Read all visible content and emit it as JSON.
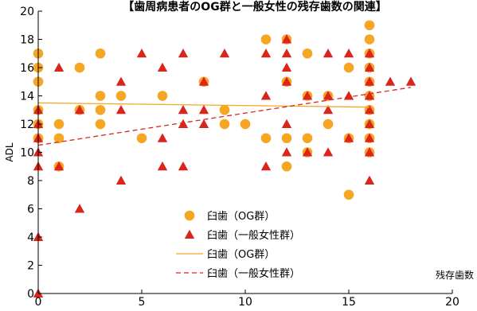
{
  "chart_data": {
    "type": "scatter",
    "title": "【歯周病患者のOG群と一般女性の残存歯数の関連】",
    "xlabel": "残存歯数",
    "ylabel": "ADL",
    "xlim": [
      0,
      20
    ],
    "ylim": [
      0,
      20
    ],
    "x_ticks": [
      "0",
      "5",
      "10",
      "15",
      "20"
    ],
    "y_ticks": [
      "0",
      "2",
      "4",
      "6",
      "8",
      "10",
      "12",
      "14",
      "16",
      "18",
      "20"
    ],
    "grid": false,
    "legend": "center",
    "colors": {
      "og": "#f5a623",
      "general": "#d9251c"
    },
    "series": [
      {
        "name": "臼歯（OG群）",
        "marker": "circle",
        "points": [
          [
            0,
            17
          ],
          [
            0,
            16
          ],
          [
            0,
            15
          ],
          [
            0,
            13
          ],
          [
            0,
            12
          ],
          [
            0,
            11
          ],
          [
            1,
            12
          ],
          [
            1,
            11
          ],
          [
            1,
            9
          ],
          [
            2,
            16
          ],
          [
            2,
            13
          ],
          [
            3,
            17
          ],
          [
            3,
            14
          ],
          [
            3,
            13
          ],
          [
            3,
            12
          ],
          [
            4,
            14
          ],
          [
            5,
            11
          ],
          [
            6,
            14
          ],
          [
            8,
            15
          ],
          [
            9,
            13
          ],
          [
            9,
            12
          ],
          [
            10,
            12
          ],
          [
            11,
            18
          ],
          [
            11,
            11
          ],
          [
            12,
            18
          ],
          [
            12,
            15
          ],
          [
            12,
            11
          ],
          [
            12,
            9
          ],
          [
            13,
            17
          ],
          [
            13,
            14
          ],
          [
            13,
            11
          ],
          [
            13,
            10
          ],
          [
            14,
            14
          ],
          [
            14,
            12
          ],
          [
            15,
            16
          ],
          [
            15,
            11
          ],
          [
            15,
            7
          ],
          [
            16,
            19
          ],
          [
            16,
            18
          ],
          [
            16,
            17
          ],
          [
            16,
            16
          ],
          [
            16,
            15
          ],
          [
            16,
            14
          ],
          [
            16,
            13
          ],
          [
            16,
            12
          ],
          [
            16,
            11
          ],
          [
            16,
            10
          ]
        ]
      },
      {
        "name": "臼歯（一般女性群）",
        "marker": "triangle",
        "points": [
          [
            0,
            13
          ],
          [
            0,
            12
          ],
          [
            0,
            11
          ],
          [
            0,
            10
          ],
          [
            0,
            9
          ],
          [
            0,
            4
          ],
          [
            0,
            0
          ],
          [
            1,
            16
          ],
          [
            1,
            9
          ],
          [
            2,
            13
          ],
          [
            2,
            6
          ],
          [
            4,
            15
          ],
          [
            4,
            13
          ],
          [
            4,
            8
          ],
          [
            5,
            17
          ],
          [
            6,
            16
          ],
          [
            6,
            11
          ],
          [
            6,
            9
          ],
          [
            7,
            17
          ],
          [
            7,
            13
          ],
          [
            7,
            12
          ],
          [
            7,
            9
          ],
          [
            8,
            15
          ],
          [
            8,
            13
          ],
          [
            8,
            12
          ],
          [
            9,
            17
          ],
          [
            11,
            17
          ],
          [
            11,
            14
          ],
          [
            11,
            9
          ],
          [
            12,
            18
          ],
          [
            12,
            17
          ],
          [
            12,
            16
          ],
          [
            12,
            15
          ],
          [
            12,
            12
          ],
          [
            12,
            10
          ],
          [
            13,
            14
          ],
          [
            13,
            10
          ],
          [
            14,
            17
          ],
          [
            14,
            14
          ],
          [
            14,
            13
          ],
          [
            14,
            10
          ],
          [
            15,
            17
          ],
          [
            15,
            14
          ],
          [
            15,
            11
          ],
          [
            16,
            17
          ],
          [
            16,
            16
          ],
          [
            16,
            15
          ],
          [
            16,
            14
          ],
          [
            16,
            13
          ],
          [
            16,
            12
          ],
          [
            16,
            11
          ],
          [
            16,
            10
          ],
          [
            16,
            8
          ],
          [
            17,
            15
          ],
          [
            18,
            15
          ]
        ]
      },
      {
        "name": "臼歯（OG群）",
        "type": "line",
        "style": "solid",
        "x": [
          0,
          16
        ],
        "y": [
          13.5,
          13.2
        ]
      },
      {
        "name": "臼歯（一般女性群）",
        "type": "line",
        "style": "dashed",
        "x": [
          0,
          18
        ],
        "y": [
          10.5,
          14.6
        ]
      }
    ]
  }
}
